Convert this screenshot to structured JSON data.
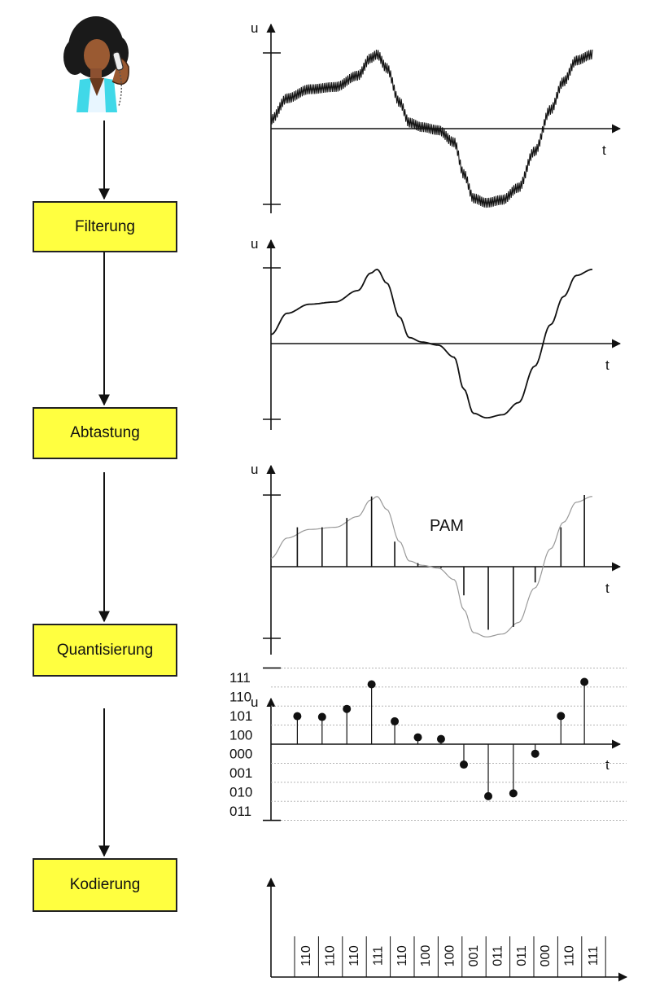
{
  "stages": [
    {
      "label": "Filterung"
    },
    {
      "label": "Abtastung"
    },
    {
      "label": "Quantisierung"
    },
    {
      "label": "Kodierung"
    }
  ],
  "axes": {
    "u": "u",
    "t": "t"
  },
  "pam_label": "PAM",
  "level_labels": [
    "111",
    "110",
    "101",
    "100",
    "000",
    "001",
    "010",
    "011"
  ],
  "samples": [
    {
      "t": 0.082,
      "v": 0.55,
      "code": "110",
      "q": 1.47
    },
    {
      "t": 0.159,
      "v": 0.55,
      "code": "110",
      "q": 1.43
    },
    {
      "t": 0.236,
      "v": 0.68,
      "code": "110",
      "q": 1.85
    },
    {
      "t": 0.313,
      "v": 0.98,
      "code": "111",
      "q": 3.14
    },
    {
      "t": 0.385,
      "v": 0.35,
      "code": "110",
      "q": 1.2
    },
    {
      "t": 0.457,
      "v": 0.05,
      "code": "100",
      "q": 0.36
    },
    {
      "t": 0.529,
      "v": -0.02,
      "code": "100",
      "q": 0.27
    },
    {
      "t": 0.6,
      "v": -0.4,
      "code": "001",
      "q": -1.07
    },
    {
      "t": 0.676,
      "v": -0.88,
      "code": "011",
      "q": -2.73
    },
    {
      "t": 0.754,
      "v": -0.84,
      "code": "011",
      "q": -2.58
    },
    {
      "t": 0.822,
      "v": -0.22,
      "code": "000",
      "q": -0.5
    },
    {
      "t": 0.902,
      "v": 0.55,
      "code": "110",
      "q": 1.48
    },
    {
      "t": 0.975,
      "v": 1.0,
      "code": "111",
      "q": 3.27
    }
  ],
  "colors": {
    "box_fill": "#ffff40",
    "line": "#111111",
    "grid": "#aaaaaa",
    "pam_curve": "#999999"
  }
}
